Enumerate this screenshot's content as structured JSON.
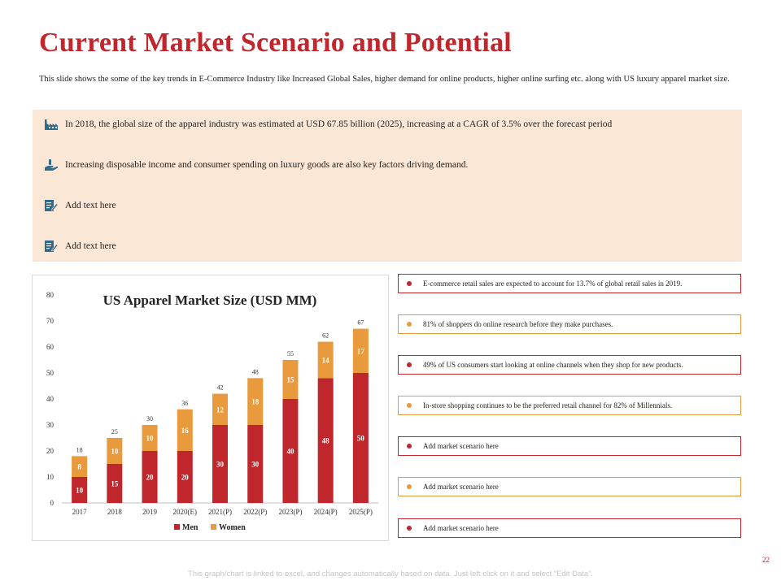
{
  "slide": {
    "title": "Current Market Scenario and Potential",
    "subtitle": "This slide shows the some of the key trends in E-Commerce Industry like Increased Global Sales, higher demand for online products, higher online surfing etc. along with US luxury apparel market size.",
    "page_number": "22",
    "footer": "This graph/chart is linked to excel, and changes automatically based on data. Just left click on it and select “Edit Data”."
  },
  "trends": [
    {
      "icon": "factory-icon",
      "text": "In 2018, the global size of the apparel industry was estimated at USD 67.85 billion (2025), increasing at a CAGR of 3.5% over the forecast period"
    },
    {
      "icon": "hand-money-icon",
      "text": "Increasing disposable income and consumer spending on luxury goods are also key factors driving demand."
    },
    {
      "icon": "edit-document-icon",
      "text": "Add text here"
    },
    {
      "icon": "edit-document-icon",
      "text": "Add text here"
    }
  ],
  "scenarios": [
    {
      "text": "E-commerce retail sales are expected to account for 13.7% of global retail sales in 2019.",
      "style": "red"
    },
    {
      "text": "81% of shoppers do online research before they make purchases.",
      "style": "orange"
    },
    {
      "text": "49% of US consumers start looking at online channels when they shop for new products.",
      "style": "red"
    },
    {
      "text": "In-store shopping continues to be the preferred retail channel for 82% of Millennials.",
      "style": "orange"
    },
    {
      "text": "Add market scenario here",
      "style": "red"
    },
    {
      "text": "Add market scenario here",
      "style": "orange"
    },
    {
      "text": "Add market scenario here",
      "style": "red"
    }
  ],
  "colors": {
    "accent": "#c0272d",
    "men": "#c0272d",
    "women": "#e89a3c",
    "panel": "#fae7d6"
  },
  "chart_data": {
    "type": "bar",
    "stacked": true,
    "title": "US Apparel Market Size (USD MM)",
    "categories": [
      "2017",
      "2018",
      "2019",
      "2020(E)",
      "2021(P)",
      "2022(P)",
      "2023(P)",
      "2024(P)",
      "2025(P)"
    ],
    "series": [
      {
        "name": "Men",
        "values": [
          10,
          15,
          20,
          20,
          30,
          30,
          40,
          48,
          50
        ]
      },
      {
        "name": "Women",
        "values": [
          8,
          10,
          10,
          16,
          12,
          18,
          15,
          14,
          17
        ]
      }
    ],
    "totals": [
      18,
      25,
      30,
      36,
      42,
      48,
      55,
      62,
      67
    ],
    "ylim": [
      0,
      80
    ],
    "yticks": [
      0,
      10,
      20,
      30,
      40,
      50,
      60,
      70,
      80
    ],
    "legend_position": "bottom",
    "xlabel": "",
    "ylabel": ""
  }
}
